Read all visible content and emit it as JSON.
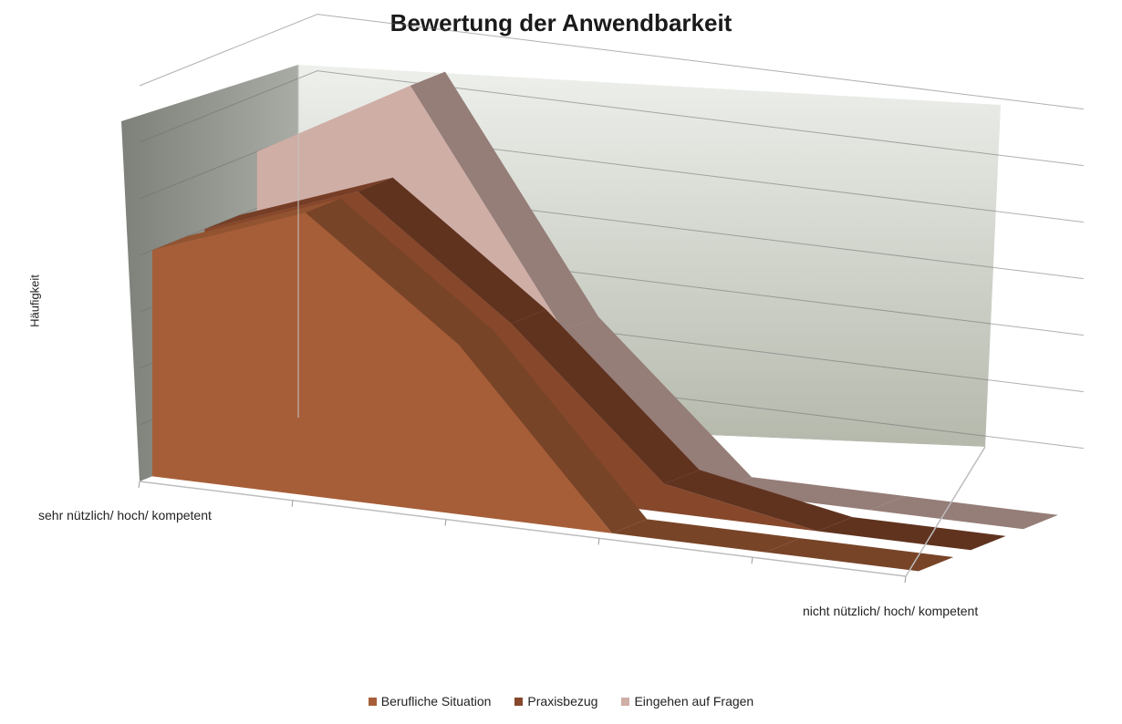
{
  "chart_data": {
    "type": "area",
    "variant": "3d",
    "title": "Bewertung der Anwendbarkeit",
    "ylabel": "Häufigkeit",
    "categories": [
      "sehr nützlich/ hoch/ kompetent",
      "",
      "",
      "",
      "",
      "nicht nützlich/ hoch/ kompetent"
    ],
    "category_labels_shown": [
      "sehr nützlich/ hoch/ kompetent",
      "nicht nützlich/ hoch/ kompetent"
    ],
    "ylim": [
      0,
      7
    ],
    "grid": true,
    "legend_position": "bottom",
    "series": [
      {
        "name": "Berufliche Situation",
        "values": [
          4,
          5,
          3,
          0,
          0,
          0
        ],
        "color": "#a65e38"
      },
      {
        "name": "Praxisbezug",
        "values": [
          4,
          5,
          3,
          0.5,
          0,
          0
        ],
        "color": "#86472b"
      },
      {
        "name": "Eingehen auf Fragen",
        "values": [
          5,
          6.5,
          2.5,
          0,
          0,
          0
        ],
        "color": "#cfaea6"
      }
    ]
  }
}
